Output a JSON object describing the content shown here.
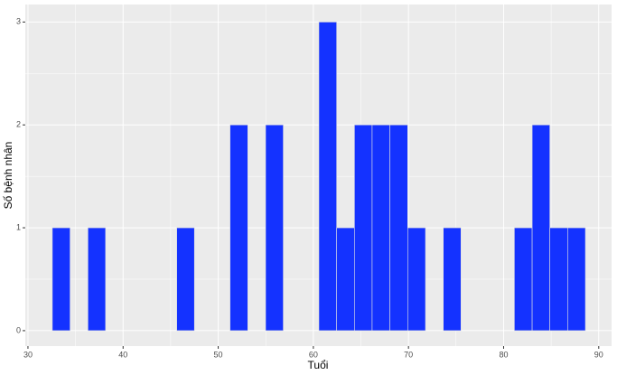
{
  "chart_data": {
    "type": "histogram",
    "x_label": "Tuổi",
    "y_label": "Số bệnh nhân",
    "bins": [
      32.56,
      34.43,
      36.3,
      38.16,
      40.03,
      41.9,
      43.77,
      45.64,
      47.5,
      49.37,
      51.24,
      53.11,
      54.98,
      56.84,
      58.71,
      60.58,
      62.45,
      64.32,
      66.18,
      68.05,
      69.92,
      71.79,
      73.66,
      75.52,
      77.39,
      79.26,
      81.13,
      83.0,
      84.86,
      86.73,
      88.6
    ],
    "values": [
      1,
      0,
      1,
      0,
      0,
      0,
      0,
      1,
      0,
      0,
      2,
      0,
      2,
      0,
      0,
      3,
      1,
      2,
      2,
      2,
      1,
      0,
      1,
      0,
      0,
      0,
      1,
      2,
      1,
      1
    ],
    "color": "#1432ff",
    "xlim": [
      29.72,
      91.35
    ],
    "xticks": [
      30,
      40,
      50,
      60,
      70,
      80,
      90
    ],
    "ylim": [
      -0.15,
      3.17
    ],
    "yticks": [
      0,
      1,
      2,
      3
    ],
    "grid": true
  }
}
